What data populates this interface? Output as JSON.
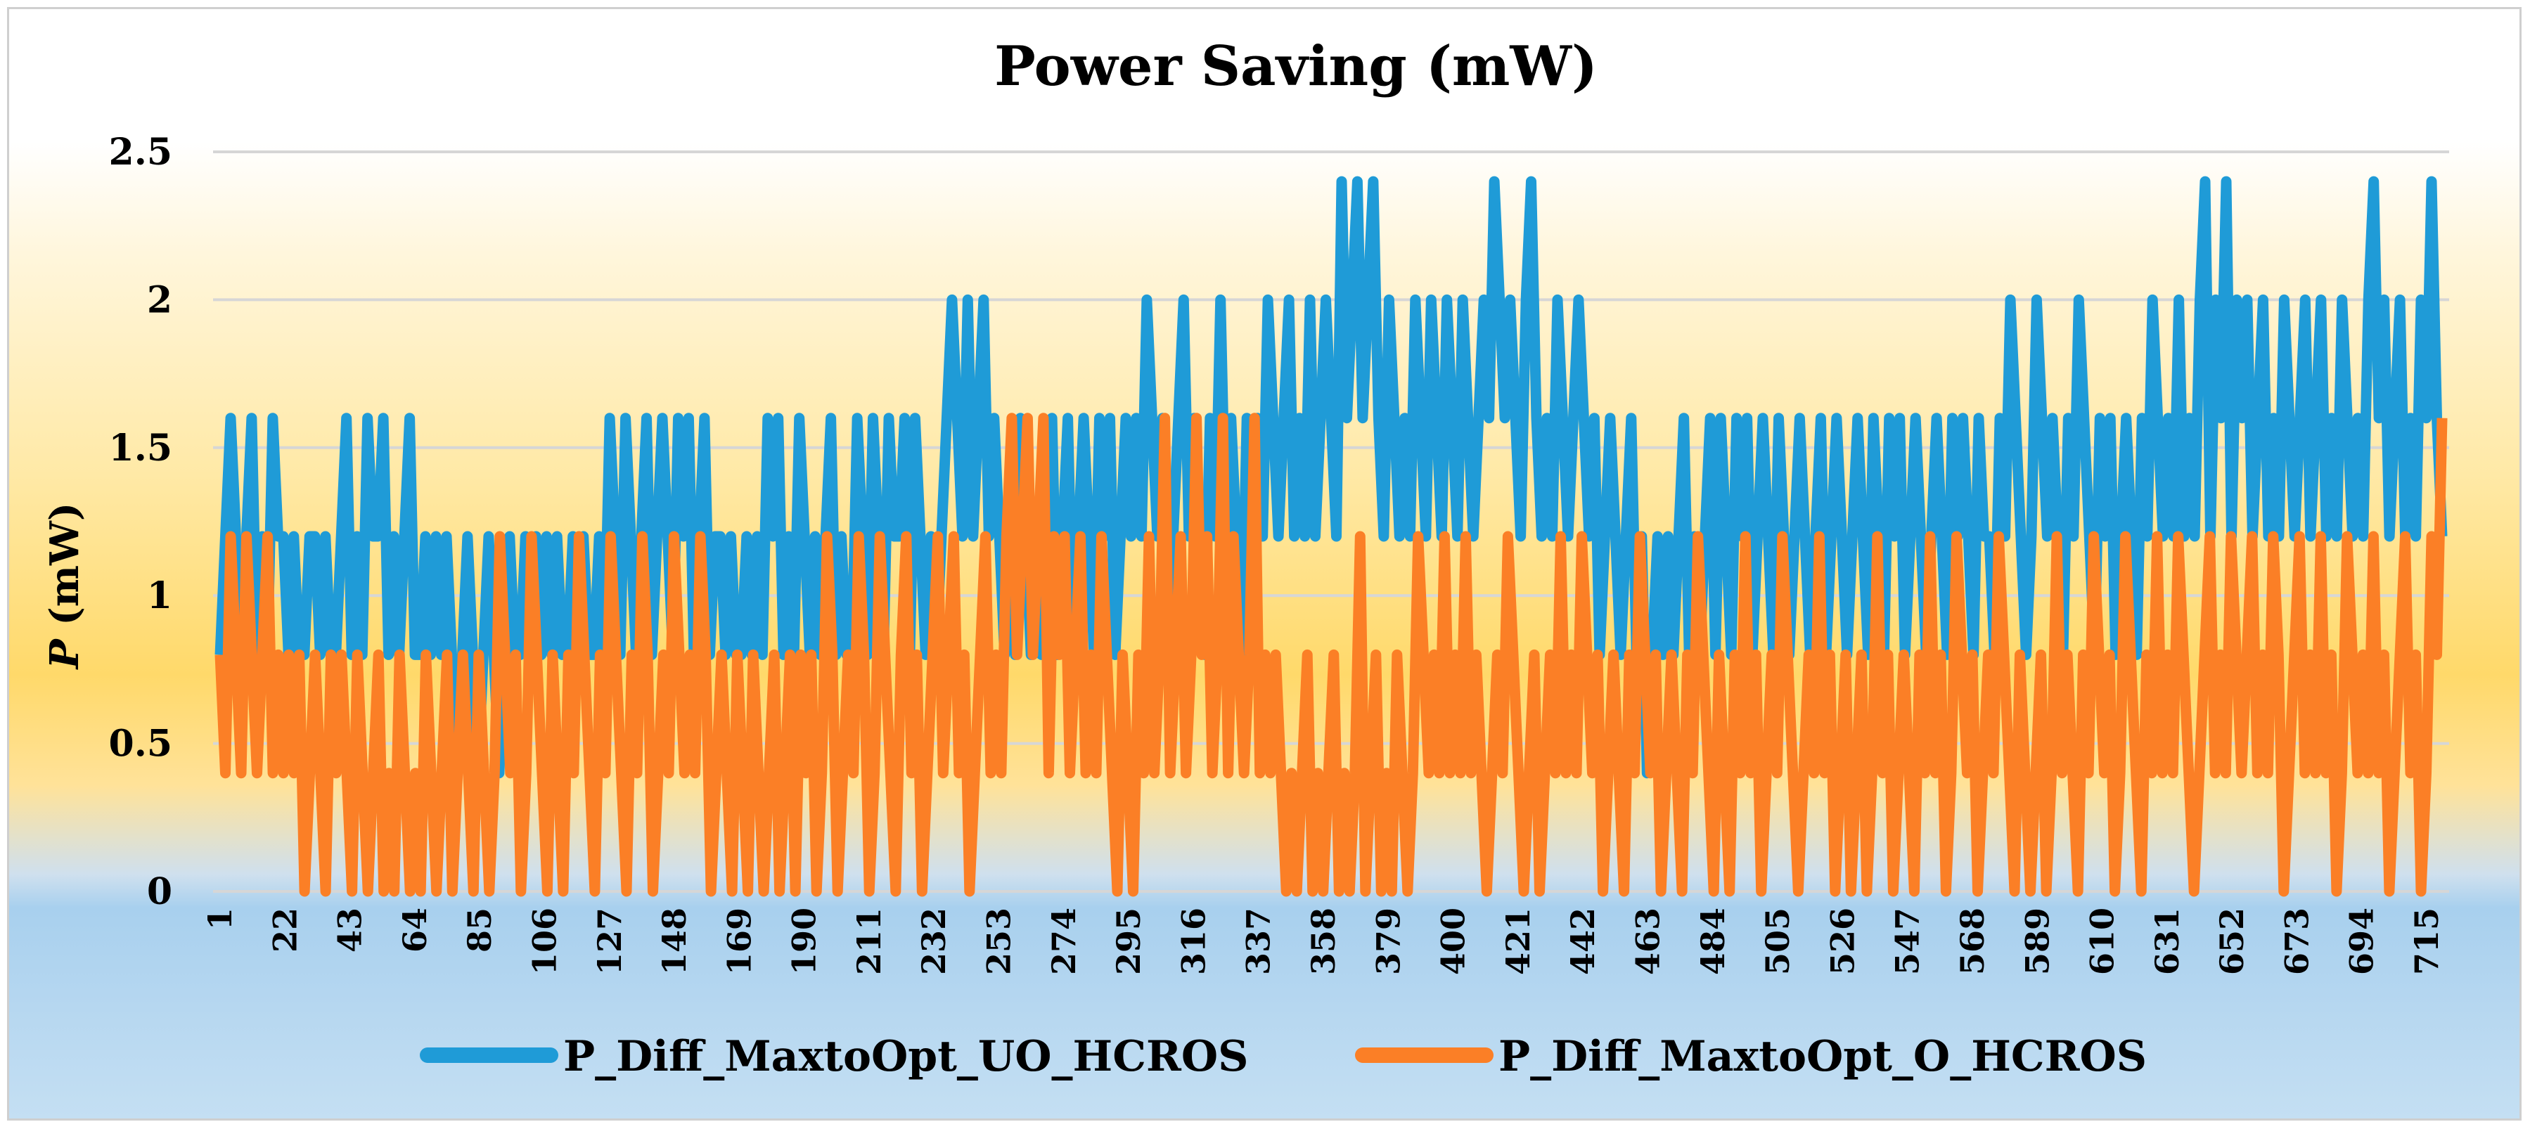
{
  "chart_data": {
    "type": "line",
    "title": "Power Saving (mW)",
    "xlabel": "",
    "ylabel_italic": "P",
    "ylabel_rest": " (mW)",
    "ylim": [
      0,
      2.5
    ],
    "yticks": [
      "0",
      "0.5",
      "1",
      "1.5",
      "2",
      "2.5"
    ],
    "ytick_values": [
      0,
      0.5,
      1,
      1.5,
      2,
      2.5
    ],
    "x_start": 1,
    "x_end": 720,
    "xtick_labels": [
      "1",
      "22",
      "43",
      "64",
      "85",
      "106",
      "127",
      "148",
      "169",
      "190",
      "211",
      "232",
      "253",
      "274",
      "295",
      "316",
      "337",
      "358",
      "379",
      "400",
      "421",
      "442",
      "463",
      "484",
      "505",
      "526",
      "547",
      "568",
      "589",
      "610",
      "631",
      "652",
      "673",
      "694",
      "715"
    ],
    "series": [
      {
        "name": "P_Diff_MaxtoOpt_UO_HCROS",
        "color": "#1f9bd7",
        "values": [
          0.8,
          1.2,
          1.6,
          1.2,
          0.8,
          1.2,
          1.6,
          0.8,
          1.2,
          0.8,
          1.6,
          1.2,
          1.2,
          0.8,
          1.2,
          0.8,
          0.8,
          1.2,
          1.2,
          0.8,
          1.2,
          0.8,
          0.8,
          1.2,
          1.6,
          0.8,
          1.2,
          0.8,
          1.6,
          1.2,
          1.2,
          1.6,
          0.8,
          1.2,
          0.8,
          1.2,
          1.6,
          0.8,
          0.8,
          1.2,
          0.8,
          1.2,
          0.8,
          1.2,
          0.8,
          0.4,
          0.8,
          1.2,
          0.8,
          0.4,
          0.8,
          1.2,
          0.8,
          0.4,
          0.8,
          1.2,
          0.8,
          0.8,
          1.2,
          0.8,
          1.2,
          0.8,
          1.2,
          0.8,
          1.2,
          0.8,
          0.8,
          1.2,
          0.8,
          1.2,
          0.8,
          0.8,
          1.2,
          0.8,
          1.6,
          1.2,
          0.8,
          1.6,
          1.2,
          0.8,
          1.2,
          1.6,
          0.8,
          1.2,
          1.6,
          1.2,
          0.8,
          1.6,
          1.2,
          1.6,
          0.8,
          1.2,
          1.6,
          0.8,
          1.2,
          1.2,
          0.8,
          1.2,
          0.8,
          0.8,
          1.2,
          0.8,
          1.2,
          0.8,
          1.6,
          1.2,
          1.6,
          0.8,
          1.2,
          0.8,
          1.6,
          1.2,
          0.8,
          1.2,
          0.8,
          1.2,
          1.6,
          0.8,
          1.2,
          0.8,
          0.8,
          1.6,
          1.2,
          0.8,
          1.6,
          1.2,
          0.8,
          1.6,
          1.2,
          1.2,
          1.6,
          0.8,
          1.6,
          1.2,
          0.8,
          1.2,
          0.8,
          1.2,
          1.6,
          2.0,
          1.6,
          1.2,
          2.0,
          1.2,
          1.6,
          2.0,
          1.2,
          1.6,
          1.2,
          0.8,
          1.2,
          0.8,
          1.6,
          1.2,
          0.8,
          1.2,
          0.8,
          1.2,
          1.6,
          0.8,
          1.2,
          1.6,
          0.8,
          1.2,
          1.6,
          1.2,
          0.8,
          1.6,
          1.2,
          1.6,
          0.8,
          1.2,
          1.6,
          1.2,
          1.6,
          1.2,
          2.0,
          1.6,
          1.2,
          1.6,
          0.8,
          1.2,
          1.6,
          2.0,
          1.2,
          1.6,
          1.2,
          0.8,
          1.6,
          1.2,
          2.0,
          1.2,
          1.6,
          1.2,
          0.8,
          1.6,
          1.2,
          1.6,
          1.2,
          2.0,
          1.6,
          1.2,
          1.6,
          2.0,
          1.2,
          1.6,
          1.2,
          2.0,
          1.2,
          1.6,
          2.0,
          1.6,
          1.2,
          2.4,
          1.6,
          2.0,
          2.4,
          1.6,
          2.0,
          2.4,
          1.6,
          1.2,
          2.0,
          1.6,
          1.2,
          1.6,
          1.2,
          2.0,
          1.6,
          1.2,
          2.0,
          1.6,
          1.2,
          2.0,
          1.6,
          1.2,
          2.0,
          1.6,
          1.2,
          1.6,
          2.0,
          1.6,
          2.4,
          2.0,
          1.6,
          2.0,
          1.6,
          1.2,
          2.0,
          2.4,
          1.6,
          1.2,
          1.6,
          1.2,
          2.0,
          1.6,
          1.2,
          1.6,
          2.0,
          1.6,
          1.2,
          1.6,
          0.8,
          1.2,
          1.6,
          1.2,
          0.8,
          1.2,
          1.6,
          0.8,
          1.2,
          0.4,
          0.8,
          1.2,
          0.8,
          1.2,
          0.8,
          1.2,
          1.6,
          0.8,
          1.2,
          0.8,
          1.2,
          1.6,
          0.8,
          1.6,
          1.2,
          0.8,
          1.6,
          1.2,
          1.6,
          0.8,
          1.2,
          1.6,
          1.2,
          0.8,
          1.6,
          1.2,
          0.8,
          1.2,
          1.6,
          1.2,
          0.8,
          1.2,
          1.6,
          0.8,
          1.2,
          1.6,
          1.2,
          0.8,
          1.2,
          1.6,
          1.2,
          0.8,
          1.6,
          1.2,
          0.8,
          1.6,
          1.2,
          1.6,
          0.8,
          1.2,
          1.6,
          1.2,
          0.8,
          1.2,
          1.6,
          1.2,
          0.8,
          1.6,
          1.2,
          1.6,
          1.2,
          0.8,
          1.6,
          1.2,
          1.2,
          0.8,
          1.6,
          1.2,
          2.0,
          1.6,
          1.2,
          0.8,
          1.2,
          2.0,
          1.6,
          1.2,
          1.6,
          1.2,
          0.8,
          1.6,
          1.2,
          2.0,
          1.6,
          1.2,
          0.8,
          1.6,
          1.2,
          1.6,
          0.8,
          1.2,
          1.6,
          1.2,
          0.8,
          1.6,
          1.2,
          2.0,
          1.6,
          1.2,
          1.6,
          1.2,
          2.0,
          1.2,
          1.6,
          1.2,
          2.0,
          2.4,
          1.2,
          2.0,
          1.6,
          2.4,
          1.2,
          2.0,
          1.6,
          2.0,
          1.2,
          1.6,
          2.0,
          1.2,
          1.6,
          1.2,
          2.0,
          1.6,
          1.2,
          1.6,
          2.0,
          1.2,
          1.6,
          2.0,
          1.2,
          1.6,
          1.2,
          2.0,
          1.6,
          1.2,
          1.6,
          1.2,
          2.0,
          2.4,
          1.6,
          2.0,
          1.2,
          1.6,
          2.0,
          1.2,
          1.6,
          1.2,
          2.0,
          1.6,
          2.4,
          1.6,
          1.2
        ]
      },
      {
        "name": "P_Diff_MaxtoOpt_O_HCROS",
        "color": "#fb7f26",
        "values": [
          0.8,
          0.4,
          1.2,
          0.8,
          0.4,
          1.2,
          0.8,
          0.4,
          0.8,
          1.2,
          0.4,
          0.8,
          0.4,
          0.8,
          0.4,
          0.8,
          0.0,
          0.4,
          0.8,
          0.4,
          0.0,
          0.8,
          0.4,
          0.8,
          0.4,
          0.0,
          0.8,
          0.4,
          0.0,
          0.4,
          0.8,
          0.0,
          0.4,
          0.0,
          0.8,
          0.4,
          0.0,
          0.4,
          0.0,
          0.8,
          0.4,
          0.0,
          0.4,
          0.8,
          0.0,
          0.4,
          0.8,
          0.4,
          0.0,
          0.8,
          0.4,
          0.0,
          0.4,
          1.2,
          0.8,
          0.4,
          0.8,
          0.0,
          0.4,
          1.2,
          0.8,
          0.4,
          0.0,
          0.8,
          0.4,
          0.0,
          0.8,
          0.4,
          1.2,
          0.8,
          0.4,
          0.0,
          0.8,
          0.4,
          1.2,
          0.8,
          0.4,
          0.0,
          0.8,
          0.4,
          1.2,
          0.8,
          0.0,
          0.4,
          0.8,
          0.4,
          1.2,
          0.8,
          0.4,
          0.8,
          0.4,
          1.2,
          0.8,
          0.0,
          0.4,
          0.8,
          0.4,
          0.0,
          0.8,
          0.4,
          0.0,
          0.8,
          0.4,
          0.0,
          0.4,
          0.8,
          0.0,
          0.4,
          0.8,
          0.0,
          0.8,
          0.4,
          0.8,
          0.0,
          0.4,
          1.2,
          0.8,
          0.0,
          0.4,
          0.8,
          0.4,
          1.2,
          0.8,
          0.0,
          0.4,
          1.2,
          0.8,
          0.4,
          0.0,
          0.8,
          1.2,
          0.4,
          0.8,
          0.0,
          0.4,
          0.8,
          1.2,
          0.4,
          0.8,
          1.2,
          0.4,
          0.8,
          0.0,
          0.4,
          0.8,
          1.2,
          0.4,
          0.8,
          0.4,
          1.2,
          1.6,
          0.8,
          1.2,
          1.6,
          0.8,
          1.2,
          1.6,
          0.4,
          1.2,
          0.8,
          1.2,
          0.4,
          0.8,
          1.2,
          0.4,
          0.8,
          0.4,
          1.2,
          0.8,
          0.4,
          0.0,
          0.8,
          0.4,
          0.0,
          0.8,
          0.4,
          1.2,
          0.4,
          0.8,
          1.6,
          0.4,
          0.8,
          1.2,
          0.4,
          0.8,
          1.6,
          0.8,
          1.2,
          0.4,
          0.8,
          1.6,
          0.4,
          1.2,
          0.8,
          0.4,
          0.8,
          1.6,
          0.4,
          0.8,
          0.4,
          0.8,
          0.4,
          0.0,
          0.4,
          0.0,
          0.4,
          0.8,
          0.0,
          0.4,
          0.0,
          0.4,
          0.8,
          0.0,
          0.4,
          0.0,
          0.4,
          1.2,
          0.0,
          0.4,
          0.8,
          0.0,
          0.4,
          0.0,
          0.8,
          0.4,
          0.0,
          0.4,
          1.2,
          0.8,
          0.4,
          0.8,
          0.4,
          1.2,
          0.4,
          0.8,
          0.4,
          1.2,
          0.4,
          0.8,
          0.4,
          0.0,
          0.4,
          0.8,
          0.4,
          1.2,
          0.8,
          0.4,
          0.0,
          0.4,
          0.8,
          0.0,
          0.4,
          0.8,
          0.4,
          1.2,
          0.4,
          0.8,
          0.4,
          1.2,
          0.8,
          0.4,
          0.8,
          0.0,
          0.4,
          0.8,
          0.4,
          0.0,
          0.8,
          0.4,
          1.2,
          0.8,
          0.4,
          0.8,
          0.0,
          0.4,
          0.8,
          0.4,
          0.0,
          0.8,
          0.4,
          1.2,
          0.8,
          0.4,
          0.0,
          0.8,
          0.4,
          0.0,
          0.8,
          0.4,
          1.2,
          0.4,
          0.8,
          0.0,
          0.4,
          0.8,
          0.4,
          1.2,
          0.8,
          0.4,
          0.0,
          0.4,
          0.8,
          0.4,
          1.2,
          0.4,
          0.8,
          0.0,
          0.4,
          0.8,
          0.0,
          0.4,
          0.8,
          0.0,
          0.4,
          1.2,
          0.4,
          0.8,
          0.0,
          0.4,
          0.8,
          0.4,
          0.0,
          0.8,
          0.4,
          1.2,
          0.4,
          0.8,
          0.0,
          0.4,
          1.2,
          0.8,
          0.4,
          0.8,
          0.0,
          0.4,
          0.8,
          0.4,
          1.2,
          0.8,
          0.4,
          0.0,
          0.8,
          0.4,
          0.0,
          0.4,
          0.8,
          0.0,
          0.4,
          1.2,
          0.4,
          0.8,
          0.4,
          0.0,
          0.8,
          0.4,
          1.2,
          0.8,
          0.4,
          0.8,
          0.0,
          0.4,
          1.2,
          0.8,
          0.4,
          0.0,
          0.8,
          0.4,
          1.2,
          0.4,
          0.8,
          0.4,
          1.2,
          0.8,
          0.4,
          0.0,
          0.4,
          0.8,
          1.2,
          0.4,
          0.8,
          0.4,
          1.2,
          0.8,
          0.4,
          0.8,
          1.2,
          0.4,
          0.8,
          0.4,
          1.2,
          0.8,
          0.0,
          0.4,
          0.8,
          1.2,
          0.4,
          0.8,
          0.4,
          1.2,
          0.4,
          0.8,
          0.0,
          0.4,
          1.2,
          0.8,
          0.4,
          0.8,
          0.4,
          1.2,
          0.4,
          0.8,
          0.0,
          0.4,
          0.8,
          1.2,
          0.4,
          0.8,
          0.0,
          0.4,
          1.2,
          0.8,
          1.6
        ]
      }
    ],
    "legend_position": "bottom-center",
    "grid": true
  }
}
